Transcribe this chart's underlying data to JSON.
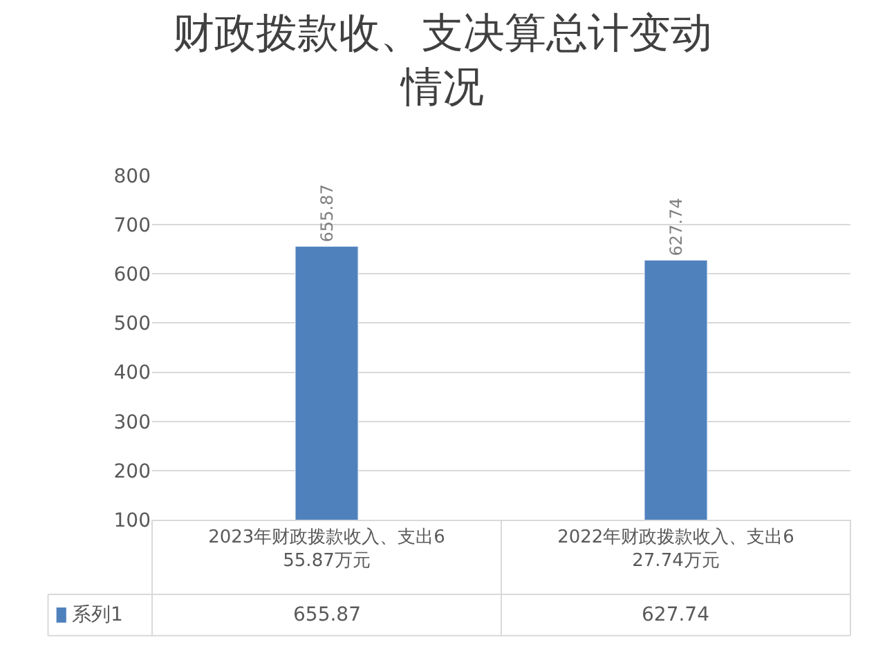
{
  "chart_data": {
    "type": "bar",
    "title": "财政拨款收、支决算总计变动情况",
    "categories": [
      "2023年财政拨款收入、支出655.87万元",
      "2022年财政拨款收入、支出627.74万元"
    ],
    "series": [
      {
        "name": "系列1",
        "color": "#4f81bd",
        "values": [
          655.87,
          627.74
        ],
        "value_labels": [
          "655.87",
          "627.74"
        ]
      }
    ],
    "ylim": [
      100,
      800
    ],
    "yticks": [
      100,
      200,
      300,
      400,
      500,
      600,
      700,
      800
    ],
    "grid": "y",
    "data_labels": true
  }
}
